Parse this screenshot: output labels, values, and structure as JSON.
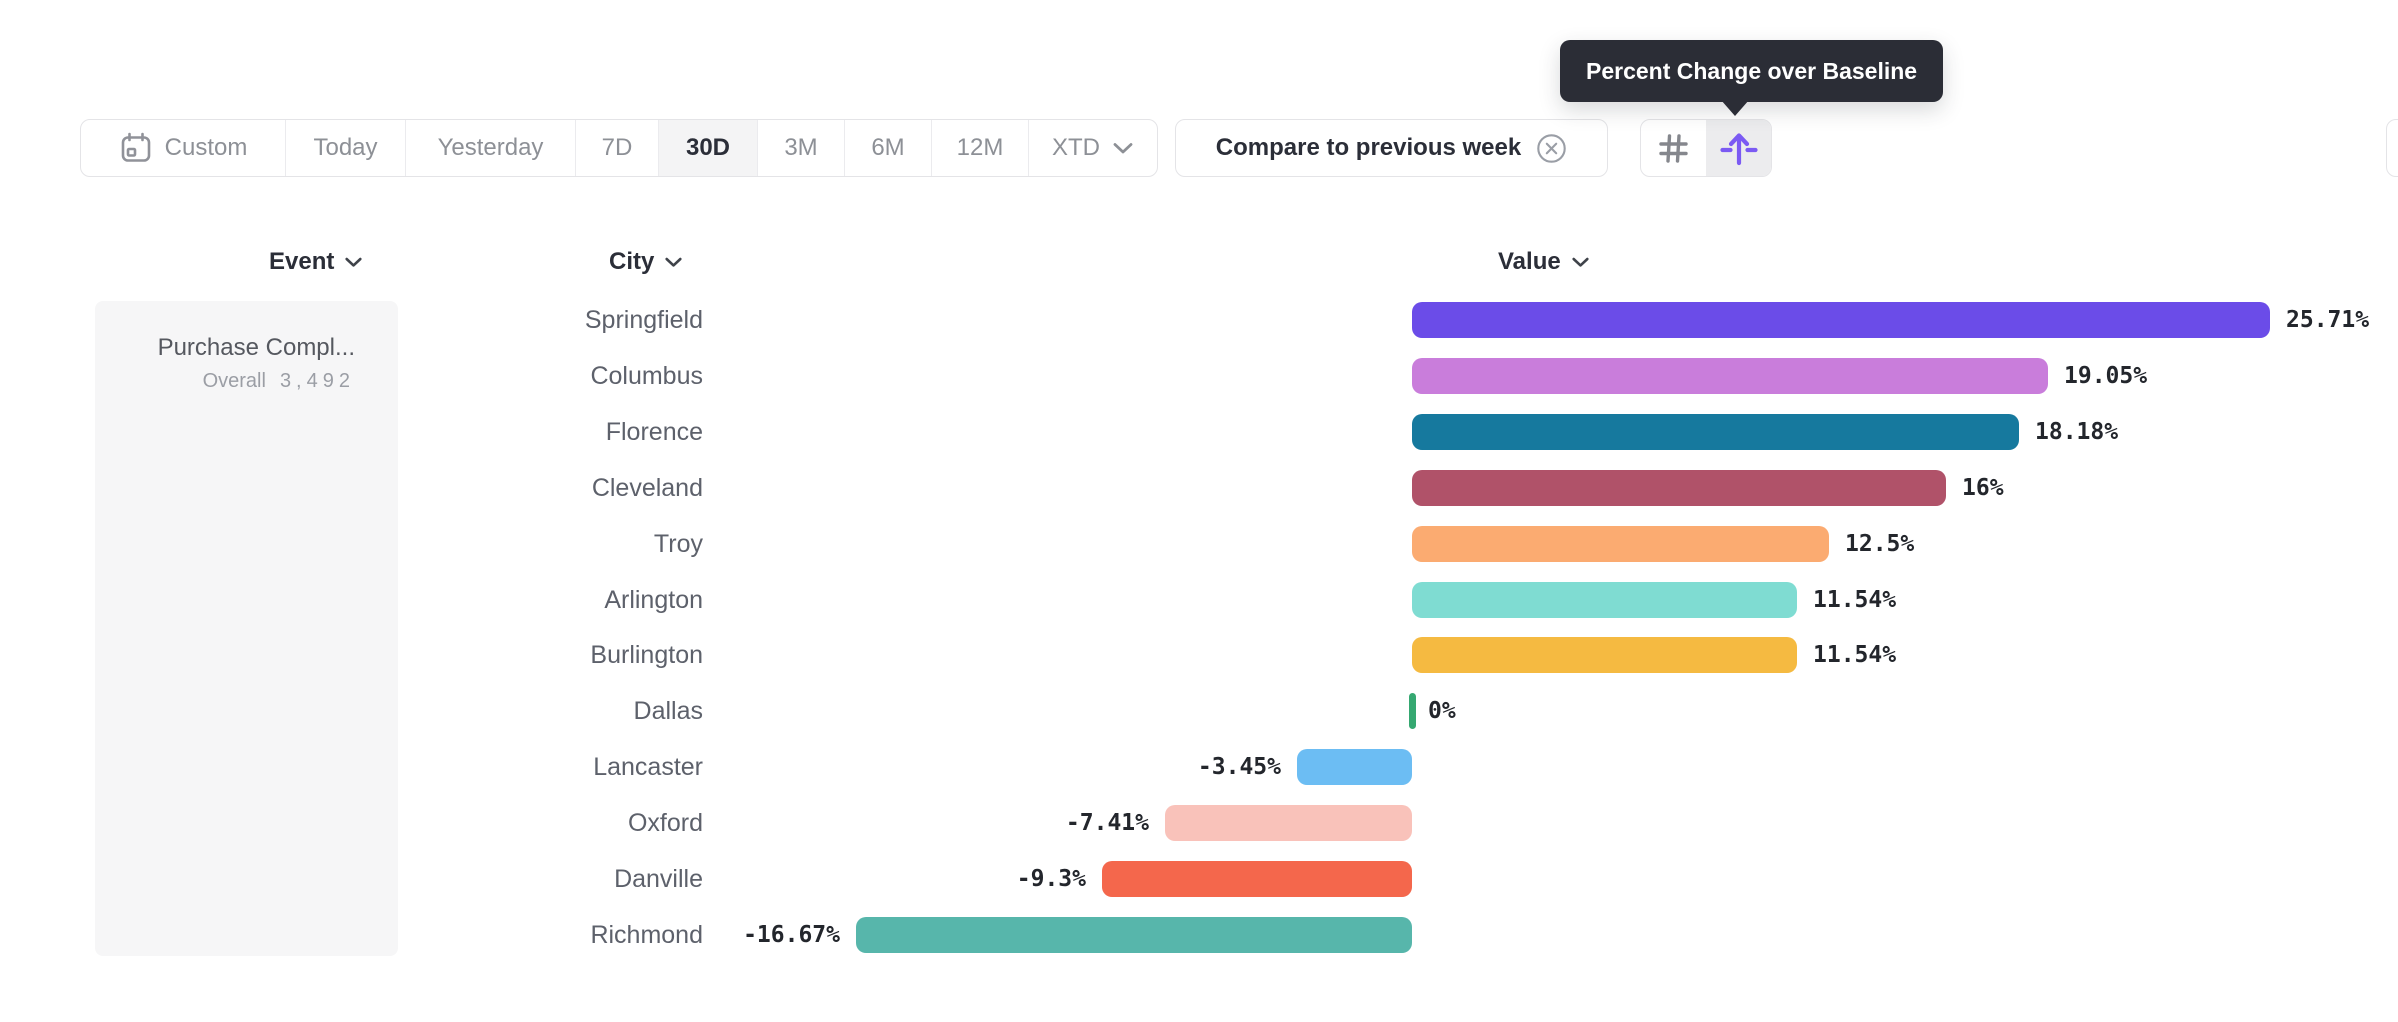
{
  "toolbar": {
    "date_ranges": [
      {
        "label": "Custom",
        "icon": "calendar-icon",
        "active": false
      },
      {
        "label": "Today",
        "active": false
      },
      {
        "label": "Yesterday",
        "active": false
      },
      {
        "label": "7D",
        "active": false
      },
      {
        "label": "30D",
        "active": true
      },
      {
        "label": "3M",
        "active": false
      },
      {
        "label": "6M",
        "active": false
      },
      {
        "label": "12M",
        "active": false
      },
      {
        "label": "XTD",
        "chevron": true,
        "active": false
      }
    ],
    "compare_chip": {
      "label": "Compare to previous week",
      "icon": "circle-x-icon"
    },
    "view_toggle": [
      {
        "name": "number-view",
        "icon": "hash-icon",
        "active": false
      },
      {
        "name": "percent-change-view",
        "icon": "percent-change-icon",
        "active": true
      }
    ],
    "accent_color": "#7b5af3"
  },
  "tooltip": {
    "text": "Percent Change over Baseline"
  },
  "columns": {
    "event": "Event",
    "city": "City",
    "value": "Value"
  },
  "event_panel": {
    "title": "Purchase Compl...",
    "breakdown_label": "Overall",
    "breakdown_value": "3,492"
  },
  "chart_data": {
    "type": "bar",
    "orientation": "horizontal",
    "title": "Percent Change over Baseline",
    "categories": [
      "Springfield",
      "Columbus",
      "Florence",
      "Cleveland",
      "Troy",
      "Arlington",
      "Burlington",
      "Dallas",
      "Lancaster",
      "Oxford",
      "Danville",
      "Richmond"
    ],
    "values": [
      25.71,
      19.05,
      18.18,
      16,
      12.5,
      11.54,
      11.54,
      0,
      -3.45,
      -7.41,
      -9.3,
      -16.67
    ],
    "labels": [
      "25.71%",
      "19.05%",
      "18.18%",
      "16%",
      "12.5%",
      "11.54%",
      "11.54%",
      "0%",
      "-3.45%",
      "-7.41%",
      "-9.3%",
      "-16.67%"
    ],
    "colors": [
      "#6b4ce8",
      "#c97ddb",
      "#16799e",
      "#b05269",
      "#fbab71",
      "#7fdcd2",
      "#f5ba41",
      "#35a871",
      "#6cbdf3",
      "#f9c2ba",
      "#f4674c",
      "#57b6ab"
    ],
    "baseline": 0,
    "xlim": [
      -16.67,
      25.71
    ],
    "value_suffix": "%",
    "grid": false,
    "legend": false
  }
}
